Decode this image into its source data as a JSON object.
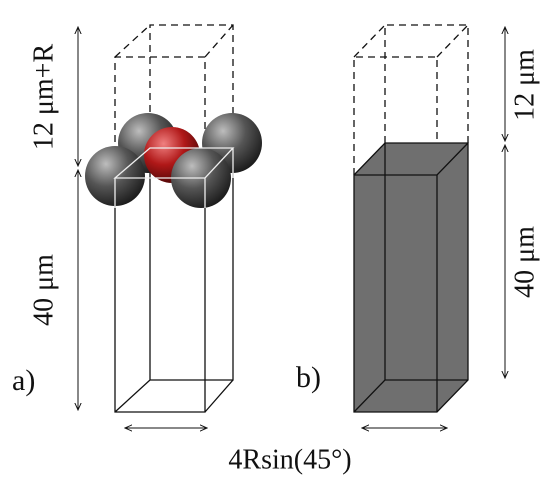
{
  "labels": {
    "a_height_top": "12 μm+R",
    "a_height_bottom": "40 μm",
    "panel_a": "a)",
    "panel_b": "b)",
    "b_height_top": "12 μm",
    "b_height_bottom": "40 μm",
    "width": "4Rsin(45°)"
  }
}
